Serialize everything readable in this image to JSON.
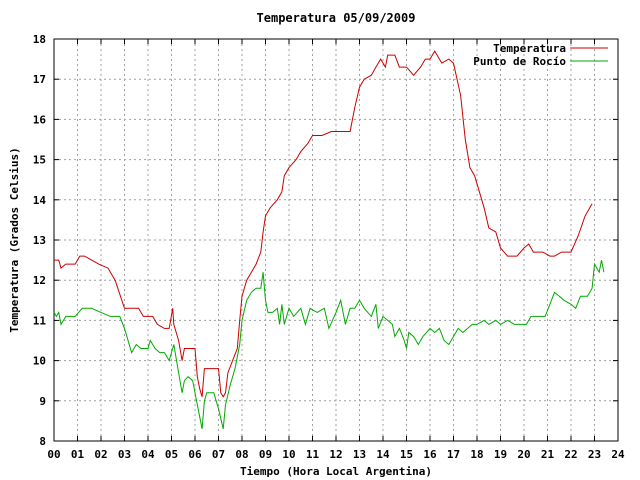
{
  "chart_data": {
    "type": "line",
    "title": "Temperatura 05/09/2009",
    "xlabel": "Tiempo (Hora Local Argentina)",
    "ylabel": "Temperatura (Grados Celsius)",
    "xlim": [
      0,
      24
    ],
    "ylim": [
      8,
      18
    ],
    "xticks": [
      "00",
      "01",
      "02",
      "03",
      "04",
      "05",
      "06",
      "07",
      "08",
      "09",
      "10",
      "11",
      "12",
      "13",
      "14",
      "15",
      "16",
      "17",
      "18",
      "19",
      "20",
      "21",
      "22",
      "23",
      "24"
    ],
    "yticks": [
      "8",
      "9",
      "10",
      "11",
      "12",
      "13",
      "14",
      "15",
      "16",
      "17",
      "18"
    ],
    "grid": true,
    "legend_position": "top-right",
    "series": [
      {
        "name": "Temperatura",
        "color": "#cc0000",
        "points": [
          [
            0.0,
            12.5
          ],
          [
            0.2,
            12.5
          ],
          [
            0.3,
            12.3
          ],
          [
            0.5,
            12.4
          ],
          [
            0.9,
            12.4
          ],
          [
            1.1,
            12.6
          ],
          [
            1.3,
            12.6
          ],
          [
            1.6,
            12.5
          ],
          [
            1.9,
            12.4
          ],
          [
            2.3,
            12.3
          ],
          [
            2.6,
            12.0
          ],
          [
            3.0,
            11.3
          ],
          [
            3.2,
            11.3
          ],
          [
            3.6,
            11.3
          ],
          [
            3.8,
            11.1
          ],
          [
            4.2,
            11.1
          ],
          [
            4.4,
            10.9
          ],
          [
            4.7,
            10.8
          ],
          [
            4.9,
            10.8
          ],
          [
            5.05,
            11.3
          ],
          [
            5.1,
            10.9
          ],
          [
            5.3,
            10.5
          ],
          [
            5.45,
            10.0
          ],
          [
            5.55,
            10.3
          ],
          [
            5.7,
            10.3
          ],
          [
            6.0,
            10.3
          ],
          [
            6.1,
            9.6
          ],
          [
            6.2,
            9.3
          ],
          [
            6.3,
            9.1
          ],
          [
            6.4,
            9.8
          ],
          [
            6.6,
            9.8
          ],
          [
            7.0,
            9.8
          ],
          [
            7.1,
            9.2
          ],
          [
            7.2,
            9.1
          ],
          [
            7.3,
            9.2
          ],
          [
            7.4,
            9.7
          ],
          [
            7.6,
            10.0
          ],
          [
            7.8,
            10.3
          ],
          [
            7.9,
            11.0
          ],
          [
            8.0,
            11.6
          ],
          [
            8.2,
            12.0
          ],
          [
            8.4,
            12.2
          ],
          [
            8.6,
            12.4
          ],
          [
            8.8,
            12.7
          ],
          [
            8.9,
            13.2
          ],
          [
            9.0,
            13.6
          ],
          [
            9.2,
            13.8
          ],
          [
            9.5,
            14.0
          ],
          [
            9.7,
            14.2
          ],
          [
            9.8,
            14.6
          ],
          [
            10.0,
            14.8
          ],
          [
            10.3,
            15.0
          ],
          [
            10.5,
            15.2
          ],
          [
            10.8,
            15.4
          ],
          [
            11.0,
            15.6
          ],
          [
            11.4,
            15.6
          ],
          [
            11.8,
            15.7
          ],
          [
            12.4,
            15.7
          ],
          [
            12.6,
            15.7
          ],
          [
            12.8,
            16.3
          ],
          [
            13.0,
            16.8
          ],
          [
            13.2,
            17.0
          ],
          [
            13.5,
            17.1
          ],
          [
            13.7,
            17.3
          ],
          [
            13.9,
            17.5
          ],
          [
            14.1,
            17.3
          ],
          [
            14.2,
            17.6
          ],
          [
            14.5,
            17.6
          ],
          [
            14.7,
            17.3
          ],
          [
            15.0,
            17.3
          ],
          [
            15.3,
            17.1
          ],
          [
            15.6,
            17.3
          ],
          [
            15.8,
            17.5
          ],
          [
            16.0,
            17.5
          ],
          [
            16.2,
            17.7
          ],
          [
            16.5,
            17.4
          ],
          [
            16.8,
            17.5
          ],
          [
            17.0,
            17.4
          ],
          [
            17.3,
            16.6
          ],
          [
            17.5,
            15.5
          ],
          [
            17.7,
            14.8
          ],
          [
            17.9,
            14.6
          ],
          [
            18.1,
            14.2
          ],
          [
            18.3,
            13.8
          ],
          [
            18.5,
            13.3
          ],
          [
            18.8,
            13.2
          ],
          [
            19.0,
            12.8
          ],
          [
            19.3,
            12.6
          ],
          [
            19.7,
            12.6
          ],
          [
            20.0,
            12.8
          ],
          [
            20.2,
            12.9
          ],
          [
            20.4,
            12.7
          ],
          [
            20.8,
            12.7
          ],
          [
            21.1,
            12.6
          ],
          [
            21.3,
            12.6
          ],
          [
            21.6,
            12.7
          ],
          [
            22.0,
            12.7
          ],
          [
            22.3,
            13.1
          ],
          [
            22.6,
            13.6
          ],
          [
            22.8,
            13.8
          ],
          [
            22.9,
            13.9
          ]
        ]
      },
      {
        "name": "Punto de Rocío",
        "color": "#00aa00",
        "points": [
          [
            0.0,
            11.2
          ],
          [
            0.1,
            11.1
          ],
          [
            0.2,
            11.2
          ],
          [
            0.3,
            10.9
          ],
          [
            0.5,
            11.1
          ],
          [
            0.9,
            11.1
          ],
          [
            1.2,
            11.3
          ],
          [
            1.6,
            11.3
          ],
          [
            2.0,
            11.2
          ],
          [
            2.4,
            11.1
          ],
          [
            2.8,
            11.1
          ],
          [
            3.0,
            10.8
          ],
          [
            3.2,
            10.4
          ],
          [
            3.3,
            10.2
          ],
          [
            3.5,
            10.4
          ],
          [
            3.7,
            10.3
          ],
          [
            4.0,
            10.3
          ],
          [
            4.1,
            10.5
          ],
          [
            4.3,
            10.3
          ],
          [
            4.5,
            10.2
          ],
          [
            4.7,
            10.2
          ],
          [
            4.9,
            10.0
          ],
          [
            5.1,
            10.4
          ],
          [
            5.3,
            9.7
          ],
          [
            5.45,
            9.2
          ],
          [
            5.55,
            9.5
          ],
          [
            5.7,
            9.6
          ],
          [
            5.9,
            9.5
          ],
          [
            6.0,
            9.2
          ],
          [
            6.2,
            8.6
          ],
          [
            6.3,
            8.3
          ],
          [
            6.4,
            9.0
          ],
          [
            6.5,
            9.2
          ],
          [
            6.8,
            9.2
          ],
          [
            7.0,
            8.8
          ],
          [
            7.2,
            8.3
          ],
          [
            7.3,
            8.9
          ],
          [
            7.5,
            9.4
          ],
          [
            7.7,
            9.8
          ],
          [
            7.9,
            10.4
          ],
          [
            8.0,
            11.0
          ],
          [
            8.2,
            11.5
          ],
          [
            8.4,
            11.7
          ],
          [
            8.6,
            11.8
          ],
          [
            8.8,
            11.8
          ],
          [
            8.9,
            12.2
          ],
          [
            9.0,
            11.5
          ],
          [
            9.1,
            11.2
          ],
          [
            9.3,
            11.2
          ],
          [
            9.5,
            11.3
          ],
          [
            9.6,
            10.9
          ],
          [
            9.7,
            11.4
          ],
          [
            9.8,
            10.9
          ],
          [
            10.0,
            11.3
          ],
          [
            10.2,
            11.1
          ],
          [
            10.5,
            11.3
          ],
          [
            10.7,
            10.9
          ],
          [
            10.9,
            11.3
          ],
          [
            11.2,
            11.2
          ],
          [
            11.5,
            11.3
          ],
          [
            11.7,
            10.8
          ],
          [
            12.0,
            11.2
          ],
          [
            12.2,
            11.5
          ],
          [
            12.4,
            10.9
          ],
          [
            12.6,
            11.3
          ],
          [
            12.8,
            11.3
          ],
          [
            13.0,
            11.5
          ],
          [
            13.2,
            11.3
          ],
          [
            13.5,
            11.1
          ],
          [
            13.7,
            11.4
          ],
          [
            13.8,
            10.8
          ],
          [
            14.0,
            11.1
          ],
          [
            14.2,
            11.0
          ],
          [
            14.4,
            10.9
          ],
          [
            14.5,
            10.6
          ],
          [
            14.7,
            10.8
          ],
          [
            14.9,
            10.5
          ],
          [
            15.0,
            10.3
          ],
          [
            15.1,
            10.7
          ],
          [
            15.3,
            10.6
          ],
          [
            15.5,
            10.4
          ],
          [
            15.7,
            10.6
          ],
          [
            16.0,
            10.8
          ],
          [
            16.2,
            10.7
          ],
          [
            16.4,
            10.8
          ],
          [
            16.6,
            10.5
          ],
          [
            16.8,
            10.4
          ],
          [
            17.0,
            10.6
          ],
          [
            17.2,
            10.8
          ],
          [
            17.4,
            10.7
          ],
          [
            17.6,
            10.8
          ],
          [
            17.8,
            10.9
          ],
          [
            18.0,
            10.9
          ],
          [
            18.3,
            11.0
          ],
          [
            18.5,
            10.9
          ],
          [
            18.8,
            11.0
          ],
          [
            19.0,
            10.9
          ],
          [
            19.3,
            11.0
          ],
          [
            19.6,
            10.9
          ],
          [
            19.9,
            10.9
          ],
          [
            20.1,
            10.9
          ],
          [
            20.3,
            11.1
          ],
          [
            20.6,
            11.1
          ],
          [
            20.9,
            11.1
          ],
          [
            21.1,
            11.4
          ],
          [
            21.3,
            11.7
          ],
          [
            21.5,
            11.6
          ],
          [
            21.7,
            11.5
          ],
          [
            22.0,
            11.4
          ],
          [
            22.2,
            11.3
          ],
          [
            22.4,
            11.6
          ],
          [
            22.7,
            11.6
          ],
          [
            22.9,
            11.8
          ],
          [
            23.0,
            12.4
          ],
          [
            23.2,
            12.2
          ],
          [
            23.3,
            12.5
          ],
          [
            23.4,
            12.2
          ]
        ]
      }
    ]
  }
}
